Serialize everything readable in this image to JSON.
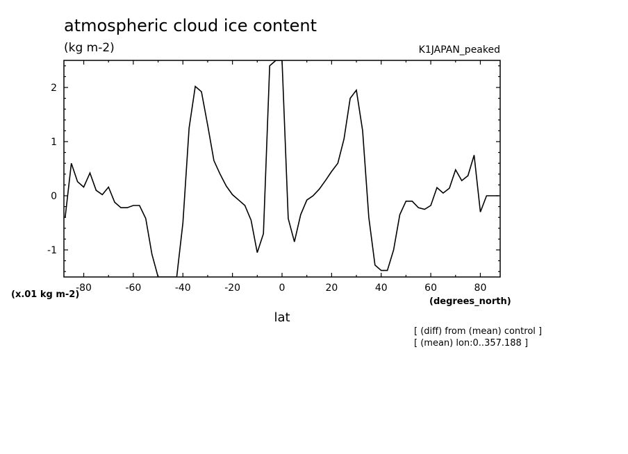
{
  "chart_data": {
    "type": "line",
    "title": "atmospheric cloud ice content",
    "units": "(kg m-2)",
    "experiment": "K1JAPAN_peaked",
    "xlabel": "lat",
    "x_units": "(degrees_north)",
    "y_scale_note": "(x.01 kg m-2)",
    "notes": [
      "[ (diff) from (mean) control ]",
      "[ (mean) lon:0..357.188 ]"
    ],
    "xlim": [
      -88,
      88
    ],
    "ylim": [
      -1.5,
      2.5
    ],
    "xticks": [
      -80,
      -60,
      -40,
      -20,
      0,
      20,
      40,
      60,
      80
    ],
    "xtick_labels": [
      "-80",
      "-60",
      "-40",
      "-20",
      "0",
      "20",
      "40",
      "60",
      "80"
    ],
    "yticks": [
      -1,
      0,
      1,
      2
    ],
    "ytick_labels": [
      "-1",
      "0",
      "1",
      "2"
    ],
    "grid": false,
    "series": [
      {
        "color": "#000000",
        "x": [
          -87.5,
          -85,
          -82.5,
          -80,
          -77.5,
          -75,
          -72.5,
          -70,
          -67.5,
          -65,
          -62.5,
          -60,
          -57.5,
          -55,
          -52.5,
          -50,
          -47.5,
          -45,
          -42.5,
          -40,
          -37.5,
          -35,
          -32.5,
          -30,
          -27.5,
          -25,
          -22.5,
          -20,
          -17.5,
          -15,
          -12.5,
          -10,
          -7.5,
          -5,
          -2.5,
          0,
          2.5,
          5,
          7.5,
          10,
          12.5,
          15,
          17.5,
          20,
          22.5,
          25,
          27.5,
          30,
          32.5,
          35,
          37.5,
          40,
          42.5,
          45,
          47.5,
          50,
          52.5,
          55,
          57.5,
          60,
          62.5,
          65,
          67.5,
          70,
          72.5,
          75,
          77.5,
          80,
          82.5,
          85,
          87.5
        ],
        "y": [
          -0.4,
          0.6,
          0.26,
          0.16,
          0.42,
          0.1,
          0.02,
          0.16,
          -0.12,
          -0.22,
          -0.22,
          -0.18,
          -0.18,
          -0.42,
          -1.08,
          -1.5,
          -1.5,
          -1.5,
          -1.5,
          -0.5,
          1.25,
          2.02,
          1.92,
          1.3,
          0.65,
          0.4,
          0.18,
          0.02,
          -0.08,
          -0.18,
          -0.45,
          -1.05,
          -0.7,
          2.4,
          2.5,
          2.5,
          -0.42,
          -0.85,
          -0.35,
          -0.08,
          0.0,
          0.12,
          0.28,
          0.45,
          0.6,
          1.05,
          1.8,
          1.95,
          1.2,
          -0.4,
          -1.28,
          -1.38,
          -1.38,
          -1.0,
          -0.35,
          -0.1,
          -0.1,
          -0.22,
          -0.25,
          -0.18,
          0.15,
          0.05,
          0.14,
          0.48,
          0.28,
          0.37,
          0.75,
          -0.3,
          0,
          0,
          0
        ]
      }
    ]
  }
}
